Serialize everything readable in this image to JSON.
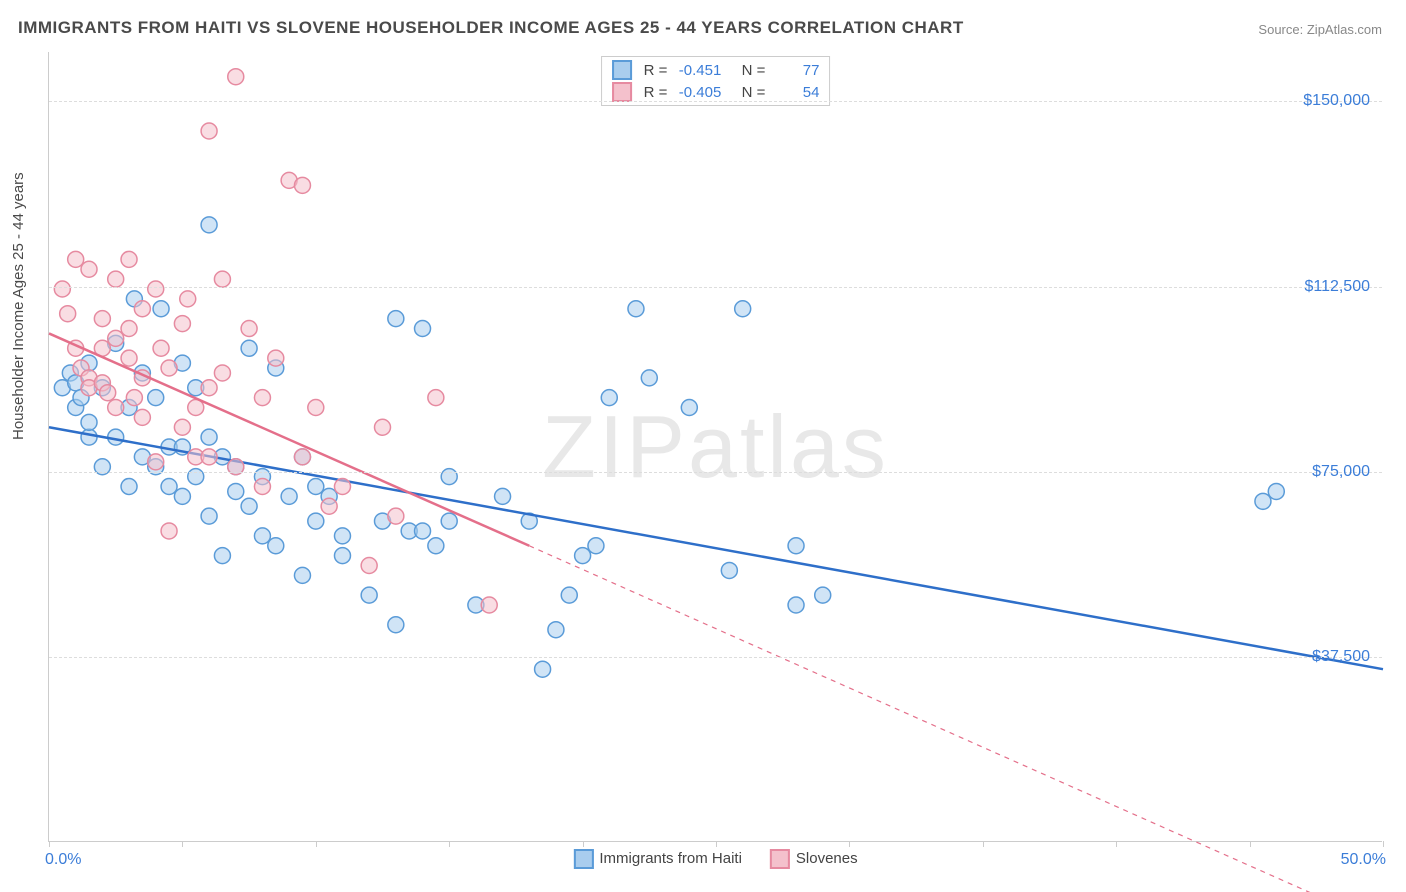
{
  "title": "IMMIGRANTS FROM HAITI VS SLOVENE HOUSEHOLDER INCOME AGES 25 - 44 YEARS CORRELATION CHART",
  "source_label": "Source:",
  "source_name": "ZipAtlas.com",
  "ylabel": "Householder Income Ages 25 - 44 years",
  "watermark_1": "ZIP",
  "watermark_2": "atlas",
  "chart": {
    "type": "scatter",
    "xlim": [
      0,
      50
    ],
    "ylim": [
      0,
      160000
    ],
    "x_start_label": "0.0%",
    "x_end_label": "50.0%",
    "x_ticks": [
      0,
      5,
      10,
      15,
      20,
      25,
      30,
      35,
      40,
      45,
      50
    ],
    "y_gridlines": [
      37500,
      75000,
      112500,
      150000
    ],
    "y_tick_labels": [
      "$37,500",
      "$75,000",
      "$112,500",
      "$150,000"
    ],
    "grid_color": "#dddddd",
    "background": "#ffffff",
    "series": [
      {
        "label": "Immigrants from Haiti",
        "fill": "#a9cdee",
        "stroke": "#5a9bd8",
        "line_color": "#2e6fc9",
        "r_value": "-0.451",
        "n_value": "77",
        "trend": {
          "x1": 0,
          "y1": 84000,
          "x2": 50,
          "y2": 35000,
          "dash_after_x": 50
        },
        "points": [
          [
            0.5,
            92000
          ],
          [
            0.8,
            95000
          ],
          [
            1,
            88000
          ],
          [
            1,
            93000
          ],
          [
            1.2,
            90000
          ],
          [
            1.5,
            82000
          ],
          [
            1.5,
            97000
          ],
          [
            1.5,
            85000
          ],
          [
            2,
            92000
          ],
          [
            2,
            76000
          ],
          [
            2.5,
            101000
          ],
          [
            2.5,
            82000
          ],
          [
            3,
            88000
          ],
          [
            3,
            72000
          ],
          [
            3.2,
            110000
          ],
          [
            3.5,
            78000
          ],
          [
            3.5,
            95000
          ],
          [
            4,
            76000
          ],
          [
            4,
            90000
          ],
          [
            4.2,
            108000
          ],
          [
            4.5,
            80000
          ],
          [
            4.5,
            72000
          ],
          [
            5,
            97000
          ],
          [
            5,
            80000
          ],
          [
            5,
            70000
          ],
          [
            5.5,
            74000
          ],
          [
            5.5,
            92000
          ],
          [
            6,
            82000
          ],
          [
            6,
            66000
          ],
          [
            6,
            125000
          ],
          [
            6.5,
            78000
          ],
          [
            6.5,
            58000
          ],
          [
            7,
            71000
          ],
          [
            7,
            76000
          ],
          [
            7.5,
            100000
          ],
          [
            7.5,
            68000
          ],
          [
            8,
            74000
          ],
          [
            8,
            62000
          ],
          [
            8.5,
            60000
          ],
          [
            8.5,
            96000
          ],
          [
            9,
            70000
          ],
          [
            9.5,
            54000
          ],
          [
            9.5,
            78000
          ],
          [
            10,
            65000
          ],
          [
            10,
            72000
          ],
          [
            10.5,
            70000
          ],
          [
            11,
            58000
          ],
          [
            11,
            62000
          ],
          [
            12,
            50000
          ],
          [
            12.5,
            65000
          ],
          [
            13,
            44000
          ],
          [
            13,
            106000
          ],
          [
            13.5,
            63000
          ],
          [
            14,
            104000
          ],
          [
            14,
            63000
          ],
          [
            14.5,
            60000
          ],
          [
            15,
            74000
          ],
          [
            15,
            65000
          ],
          [
            16,
            48000
          ],
          [
            17,
            70000
          ],
          [
            18,
            65000
          ],
          [
            18.5,
            35000
          ],
          [
            19,
            43000
          ],
          [
            19.5,
            50000
          ],
          [
            20,
            58000
          ],
          [
            20.5,
            60000
          ],
          [
            21,
            90000
          ],
          [
            22,
            108000
          ],
          [
            22.5,
            94000
          ],
          [
            24,
            88000
          ],
          [
            25.5,
            55000
          ],
          [
            26,
            108000
          ],
          [
            28,
            60000
          ],
          [
            28,
            48000
          ],
          [
            29,
            50000
          ],
          [
            45.5,
            69000
          ],
          [
            46,
            71000
          ]
        ]
      },
      {
        "label": "Slovenes",
        "fill": "#f4c1cc",
        "stroke": "#e68aa0",
        "line_color": "#e46f8a",
        "r_value": "-0.405",
        "n_value": "54",
        "trend": {
          "x1": 0,
          "y1": 103000,
          "x2": 18,
          "y2": 60000,
          "dash_after_x": 18,
          "dash_x2": 48,
          "dash_y2": -12000
        },
        "points": [
          [
            0.5,
            112000
          ],
          [
            0.7,
            107000
          ],
          [
            1,
            100000
          ],
          [
            1,
            118000
          ],
          [
            1.2,
            96000
          ],
          [
            1.5,
            94000
          ],
          [
            1.5,
            92000
          ],
          [
            1.5,
            116000
          ],
          [
            2,
            100000
          ],
          [
            2,
            106000
          ],
          [
            2,
            93000
          ],
          [
            2.2,
            91000
          ],
          [
            2.5,
            88000
          ],
          [
            2.5,
            102000
          ],
          [
            2.5,
            114000
          ],
          [
            3,
            98000
          ],
          [
            3,
            104000
          ],
          [
            3,
            118000
          ],
          [
            3.2,
            90000
          ],
          [
            3.5,
            108000
          ],
          [
            3.5,
            86000
          ],
          [
            3.5,
            94000
          ],
          [
            4,
            112000
          ],
          [
            4,
            77000
          ],
          [
            4.2,
            100000
          ],
          [
            4.5,
            96000
          ],
          [
            4.5,
            63000
          ],
          [
            5,
            105000
          ],
          [
            5,
            84000
          ],
          [
            5.2,
            110000
          ],
          [
            5.5,
            78000
          ],
          [
            5.5,
            88000
          ],
          [
            6,
            78000
          ],
          [
            6,
            92000
          ],
          [
            6,
            144000
          ],
          [
            6.5,
            95000
          ],
          [
            6.5,
            114000
          ],
          [
            7,
            76000
          ],
          [
            7,
            155000
          ],
          [
            7.5,
            104000
          ],
          [
            8,
            72000
          ],
          [
            8,
            90000
          ],
          [
            8.5,
            98000
          ],
          [
            9,
            134000
          ],
          [
            9.5,
            78000
          ],
          [
            9.5,
            133000
          ],
          [
            10,
            88000
          ],
          [
            10.5,
            68000
          ],
          [
            11,
            72000
          ],
          [
            12,
            56000
          ],
          [
            12.5,
            84000
          ],
          [
            13,
            66000
          ],
          [
            14.5,
            90000
          ],
          [
            16.5,
            48000
          ]
        ]
      }
    ],
    "legend_footer": [
      {
        "label": "Immigrants from Haiti",
        "fill": "#a9cdee",
        "stroke": "#5a9bd8"
      },
      {
        "label": "Slovenes",
        "fill": "#f4c1cc",
        "stroke": "#e68aa0"
      }
    ],
    "marker_radius": 8,
    "marker_opacity": 0.55,
    "line_width": 2.5
  }
}
